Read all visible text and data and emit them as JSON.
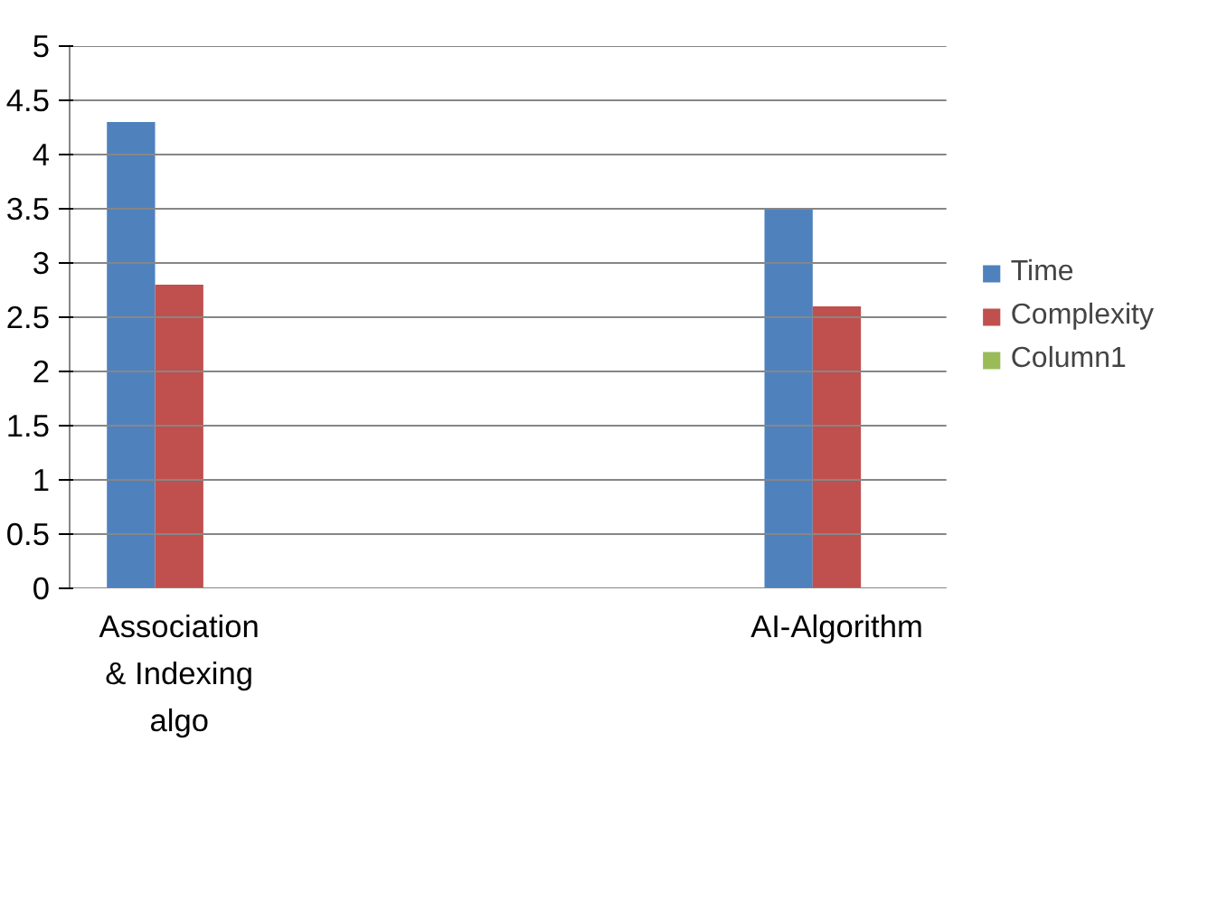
{
  "chart_data": {
    "type": "bar",
    "categories": [
      "Association & Indexing algo",
      null,
      null,
      "AI-Algorithm"
    ],
    "series": [
      {
        "name": "Time",
        "color": "#4f81bd",
        "values": [
          4.3,
          null,
          null,
          3.5
        ]
      },
      {
        "name": "Complexity",
        "color": "#c0504d",
        "values": [
          2.8,
          null,
          null,
          2.6
        ]
      },
      {
        "name": "Column1",
        "color": "#9bbb59",
        "values": [
          null,
          null,
          null,
          null
        ]
      }
    ],
    "ylim": [
      0,
      5
    ],
    "yticks": [
      0,
      0.5,
      1,
      1.5,
      2,
      2.5,
      3,
      3.5,
      4,
      4.5,
      5
    ],
    "grid": "y",
    "legend": "right"
  }
}
